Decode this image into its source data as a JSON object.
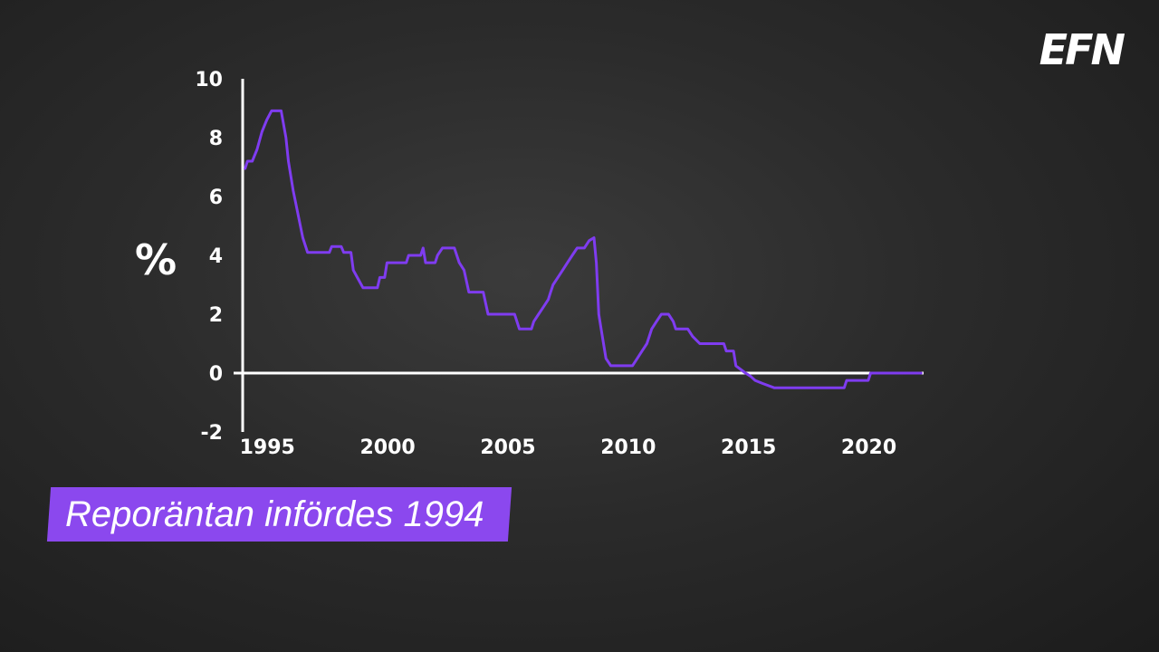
{
  "brand": {
    "logo_text": "EFN"
  },
  "caption": {
    "text": "Reporäntan infördes 1994"
  },
  "colors": {
    "line": "#7f3cf0",
    "axis": "#ffffff",
    "caption_bg": "#8b48ee"
  },
  "chart_data": {
    "type": "line",
    "ylabel": "%",
    "ylim": [
      -2,
      10
    ],
    "yticks": [
      -2,
      0,
      2,
      4,
      6,
      8,
      10
    ],
    "xlim": [
      1993.9,
      2022.2
    ],
    "xticks": [
      1995,
      2000,
      2005,
      2010,
      2015,
      2020
    ],
    "grid": false,
    "legend": "none",
    "series": [
      {
        "points": [
          [
            1994.0,
            6.95
          ],
          [
            1994.1,
            7.2
          ],
          [
            1994.3,
            7.2
          ],
          [
            1994.5,
            7.6
          ],
          [
            1994.7,
            8.2
          ],
          [
            1994.9,
            8.6
          ],
          [
            1995.1,
            8.91
          ],
          [
            1995.5,
            8.91
          ],
          [
            1995.7,
            8.0
          ],
          [
            1995.8,
            7.2
          ],
          [
            1996.0,
            6.2
          ],
          [
            1996.2,
            5.4
          ],
          [
            1996.4,
            4.6
          ],
          [
            1996.6,
            4.1
          ],
          [
            1997.5,
            4.1
          ],
          [
            1997.6,
            4.3
          ],
          [
            1998.0,
            4.3
          ],
          [
            1998.1,
            4.1
          ],
          [
            1998.4,
            4.1
          ],
          [
            1998.5,
            3.5
          ],
          [
            1998.7,
            3.2
          ],
          [
            1998.9,
            2.9
          ],
          [
            1999.5,
            2.9
          ],
          [
            1999.6,
            3.25
          ],
          [
            1999.8,
            3.25
          ],
          [
            1999.9,
            3.75
          ],
          [
            2000.7,
            3.75
          ],
          [
            2000.8,
            4.0
          ],
          [
            2001.3,
            4.0
          ],
          [
            2001.4,
            4.25
          ],
          [
            2001.5,
            3.75
          ],
          [
            2001.9,
            3.75
          ],
          [
            2002.0,
            4.0
          ],
          [
            2002.2,
            4.25
          ],
          [
            2002.7,
            4.25
          ],
          [
            2002.9,
            3.75
          ],
          [
            2003.1,
            3.5
          ],
          [
            2003.3,
            2.75
          ],
          [
            2003.9,
            2.75
          ],
          [
            2004.1,
            2.0
          ],
          [
            2005.2,
            2.0
          ],
          [
            2005.4,
            1.5
          ],
          [
            2005.9,
            1.5
          ],
          [
            2006.0,
            1.75
          ],
          [
            2006.2,
            2.0
          ],
          [
            2006.4,
            2.25
          ],
          [
            2006.6,
            2.5
          ],
          [
            2006.7,
            2.75
          ],
          [
            2006.8,
            3.0
          ],
          [
            2007.0,
            3.25
          ],
          [
            2007.2,
            3.5
          ],
          [
            2007.4,
            3.75
          ],
          [
            2007.6,
            4.0
          ],
          [
            2007.8,
            4.25
          ],
          [
            2008.1,
            4.25
          ],
          [
            2008.3,
            4.5
          ],
          [
            2008.5,
            4.6
          ],
          [
            2008.6,
            3.75
          ],
          [
            2008.7,
            2.0
          ],
          [
            2008.8,
            1.5
          ],
          [
            2009.0,
            0.5
          ],
          [
            2009.2,
            0.25
          ],
          [
            2010.1,
            0.25
          ],
          [
            2010.3,
            0.5
          ],
          [
            2010.5,
            0.75
          ],
          [
            2010.7,
            1.0
          ],
          [
            2010.8,
            1.25
          ],
          [
            2010.9,
            1.5
          ],
          [
            2011.1,
            1.75
          ],
          [
            2011.3,
            2.0
          ],
          [
            2011.6,
            2.0
          ],
          [
            2011.8,
            1.75
          ],
          [
            2011.9,
            1.5
          ],
          [
            2012.4,
            1.5
          ],
          [
            2012.6,
            1.25
          ],
          [
            2012.9,
            1.0
          ],
          [
            2013.9,
            1.0
          ],
          [
            2014.0,
            0.75
          ],
          [
            2014.3,
            0.75
          ],
          [
            2014.4,
            0.25
          ],
          [
            2014.8,
            0.0
          ],
          [
            2015.0,
            -0.1
          ],
          [
            2015.2,
            -0.25
          ],
          [
            2015.5,
            -0.35
          ],
          [
            2016.0,
            -0.5
          ],
          [
            2018.9,
            -0.5
          ],
          [
            2019.0,
            -0.25
          ],
          [
            2019.9,
            -0.25
          ],
          [
            2020.0,
            0.0
          ],
          [
            2022.1,
            0.0
          ]
        ]
      }
    ]
  }
}
